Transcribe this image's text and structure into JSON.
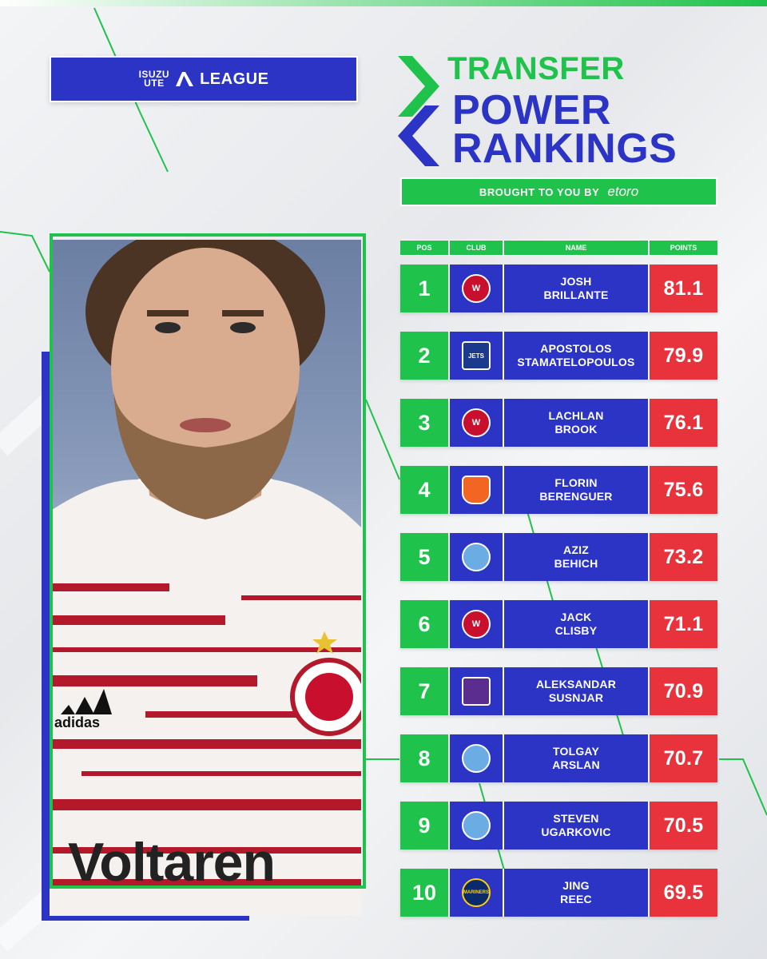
{
  "header": {
    "sponsor_line1": "ISUZU",
    "sponsor_line2": "UTE",
    "league_label": "LEAGUE"
  },
  "title": {
    "line1": "TRANSFER",
    "line2": "POWER",
    "line3": "RANKINGS"
  },
  "brought_by": {
    "label": "BROUGHT TO YOU BY",
    "sponsor": "etoro"
  },
  "table": {
    "headers": [
      "POS",
      "CLUB",
      "NAME",
      "POINTS"
    ],
    "rows": [
      {
        "pos": "1",
        "club_icon": "western-sydney-wanderers-crest",
        "club_abbr": "W",
        "first": "JOSH",
        "last": "BRILLANTE",
        "points": "81.1"
      },
      {
        "pos": "2",
        "club_icon": "newcastle-jets-crest",
        "club_abbr": "JETS",
        "first": "APOSTOLOS",
        "last": "STAMATELOPOULOS",
        "points": "79.9"
      },
      {
        "pos": "3",
        "club_icon": "western-sydney-wanderers-crest",
        "club_abbr": "W",
        "first": "LACHLAN",
        "last": "BROOK",
        "points": "76.1"
      },
      {
        "pos": "4",
        "club_icon": "brisbane-roar-crest",
        "club_abbr": "",
        "first": "FLORIN",
        "last": "BERENGUER",
        "points": "75.6"
      },
      {
        "pos": "5",
        "club_icon": "melbourne-city-crest",
        "club_abbr": "",
        "first": "AZIZ",
        "last": "BEHICH",
        "points": "73.2"
      },
      {
        "pos": "6",
        "club_icon": "western-sydney-wanderers-crest",
        "club_abbr": "W",
        "first": "JACK",
        "last": "CLISBY",
        "points": "71.1"
      },
      {
        "pos": "7",
        "club_icon": "perth-glory-crest",
        "club_abbr": "",
        "first": "ALEKSANDAR",
        "last": "SUSNJAR",
        "points": "70.9"
      },
      {
        "pos": "8",
        "club_icon": "melbourne-city-crest",
        "club_abbr": "",
        "first": "TOLGAY",
        "last": "ARSLAN",
        "points": "70.7"
      },
      {
        "pos": "9",
        "club_icon": "melbourne-city-crest",
        "club_abbr": "",
        "first": "STEVEN",
        "last": "UGARKOVIC",
        "points": "70.5"
      },
      {
        "pos": "10",
        "club_icon": "central-coast-mariners-crest",
        "club_abbr": "MARINERS",
        "first": "JING",
        "last": "REEC",
        "points": "69.5"
      }
    ]
  },
  "photo": {
    "kit_sponsor": "Voltaren",
    "kit_brand": "adidas"
  },
  "colors": {
    "green": "#1fc24a",
    "blue": "#2b34c4",
    "red": "#e8323c"
  }
}
